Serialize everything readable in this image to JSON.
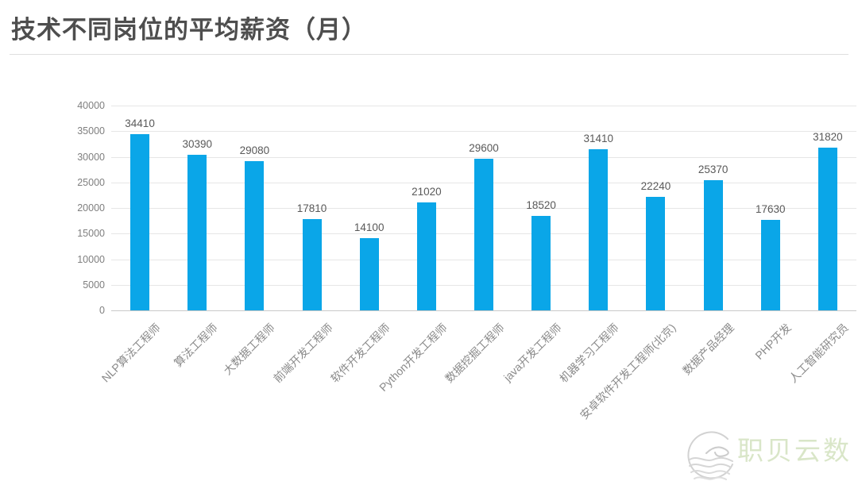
{
  "header": {
    "title": "技术不同岗位的平均薪资（月）"
  },
  "chart_data": {
    "type": "bar",
    "title": "技术不同岗位的平均薪资（月）",
    "categories": [
      "NLP算法工程师",
      "算法工程师",
      "大数据工程师",
      "前端开发工程师",
      "软件开发工程师",
      "Python开发工程师",
      "数据挖掘工程师",
      "java开发工程师",
      "机器学习工程师",
      "安卓软件开发工程师(北京)",
      "数据产品经理",
      "PHP开发",
      "人工智能研究员"
    ],
    "values": [
      34410,
      30390,
      29080,
      17810,
      14100,
      21020,
      29600,
      18520,
      31410,
      22240,
      25370,
      17630,
      31820
    ],
    "xlabel": "",
    "ylabel": "",
    "ylim": [
      0,
      40000
    ],
    "ytick_step": 5000,
    "yticks": [
      0,
      5000,
      10000,
      15000,
      20000,
      25000,
      30000,
      35000,
      40000
    ],
    "grid": true,
    "legend": "none",
    "bar_color": "#0aa6e8",
    "grid_color": "#e6e6e6",
    "zero_line_color": "#c9c9c9",
    "value_label_color": "#595959",
    "axis_label_color": "#8a8a8a"
  },
  "watermark": {
    "text": "职贝云数",
    "text_color": "#d9e6c8",
    "logo": "wave-circle-logo",
    "logo_color": "#d2d2d2"
  }
}
